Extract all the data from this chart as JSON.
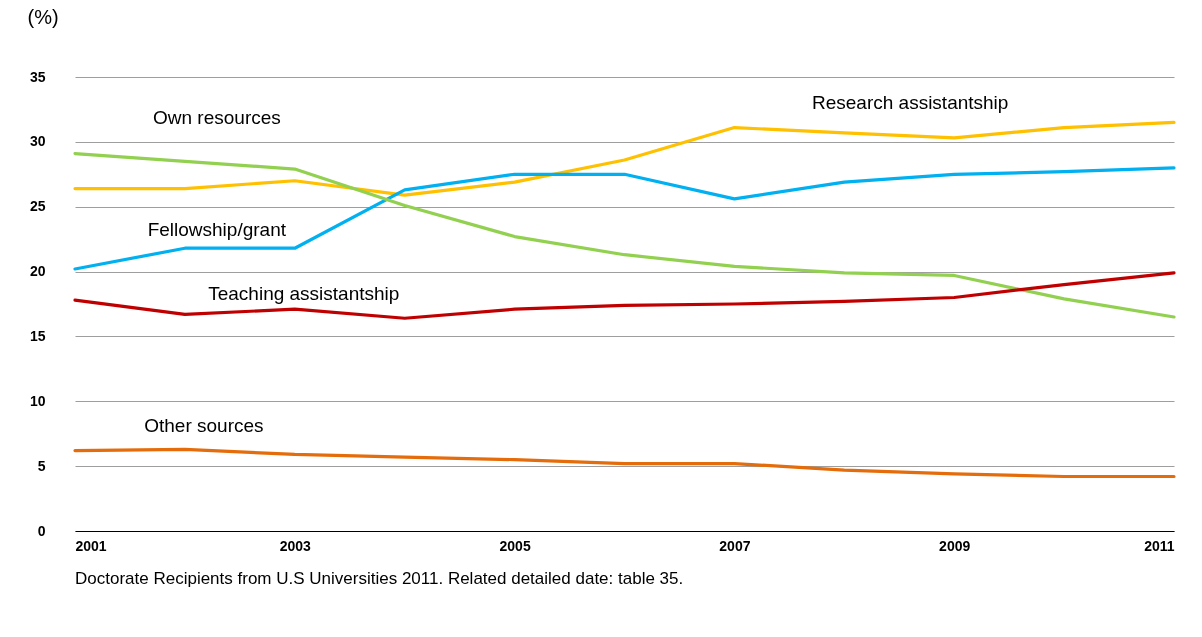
{
  "chart_data": {
    "type": "line",
    "ylabel": "(%)",
    "x": [
      2001,
      2002,
      2003,
      2004,
      2005,
      2006,
      2007,
      2008,
      2009,
      2010,
      2011
    ],
    "xlim": [
      2001,
      2011
    ],
    "xticks": [
      2001,
      2003,
      2005,
      2007,
      2009,
      2011
    ],
    "ylim": [
      0,
      35
    ],
    "yticks": [
      0,
      5,
      10,
      15,
      20,
      25,
      30,
      35
    ],
    "grid": "y",
    "legend": false,
    "marker": "none",
    "line_style": "solid",
    "series": [
      {
        "name": "Research assistantship",
        "color": "#ffc000",
        "values": [
          26.4,
          26.4,
          27.0,
          25.9,
          26.9,
          28.6,
          31.1,
          30.7,
          30.3,
          31.1,
          31.5
        ]
      },
      {
        "name": "Fellowship/grant",
        "color": "#00b0f0",
        "values": [
          20.2,
          21.8,
          21.8,
          26.3,
          27.5,
          27.5,
          25.6,
          26.9,
          27.5,
          27.7,
          28.0
        ]
      },
      {
        "name": "Own resources",
        "color": "#92d050",
        "values": [
          29.1,
          28.5,
          27.9,
          25.1,
          22.7,
          21.3,
          20.4,
          19.9,
          19.7,
          17.9,
          16.5
        ]
      },
      {
        "name": "Teaching assistantship",
        "color": "#c00000",
        "values": [
          17.8,
          16.7,
          17.1,
          16.4,
          17.1,
          17.4,
          17.5,
          17.7,
          18.0,
          19.0,
          19.9
        ]
      },
      {
        "name": "Other sources",
        "color": "#e46c0a",
        "values": [
          6.2,
          6.3,
          5.9,
          5.7,
          5.5,
          5.2,
          5.2,
          4.7,
          4.4,
          4.2,
          4.2
        ]
      }
    ],
    "annotations": [
      "Doctorate Recipients from U.S Universities 2011. Related detailed date: table 35."
    ]
  }
}
